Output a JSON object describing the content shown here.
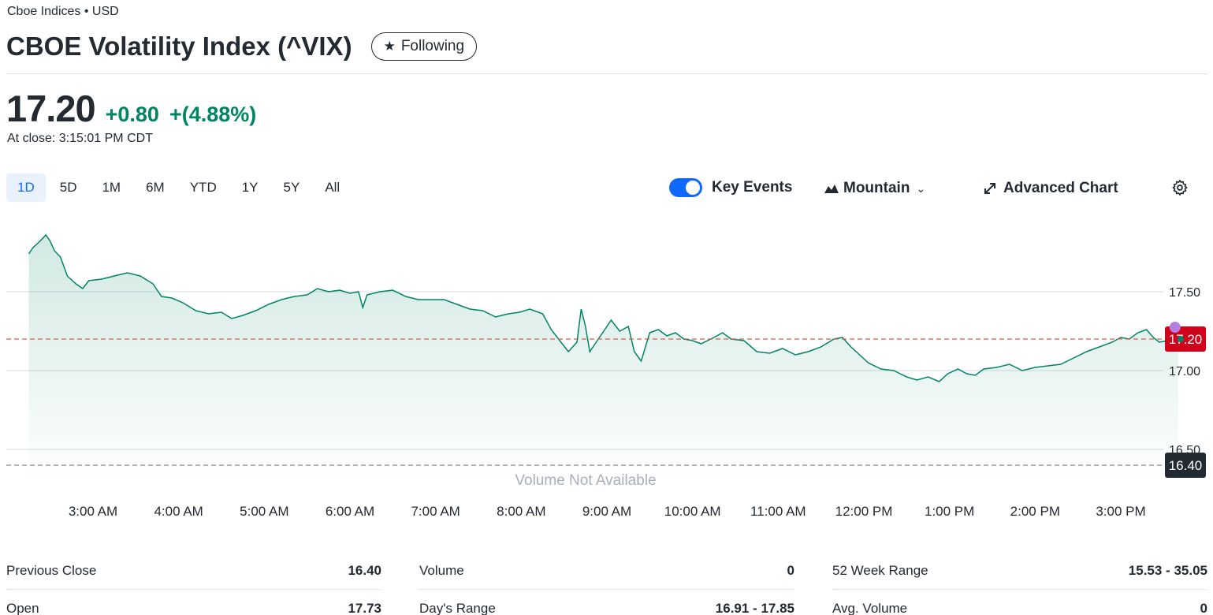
{
  "header": {
    "exchange": "Cboe Indices • USD",
    "title": "CBOE Volatility Index (^VIX)",
    "follow_label": "Following",
    "follow_icon": "star-icon"
  },
  "quote": {
    "price": "17.20",
    "change": "+0.80",
    "change_pct": "+(4.88%)",
    "close_time": "At close: 3:15:01 PM CDT",
    "positive_color": "#008463"
  },
  "range_tabs": [
    {
      "label": "1D",
      "active": true
    },
    {
      "label": "5D"
    },
    {
      "label": "1M"
    },
    {
      "label": "6M"
    },
    {
      "label": "YTD"
    },
    {
      "label": "1Y"
    },
    {
      "label": "5Y"
    },
    {
      "label": "All"
    }
  ],
  "controls": {
    "key_events_label": "Key Events",
    "key_events_on": true,
    "chart_type_label": "Mountain",
    "advanced_label": "Advanced Chart",
    "settings_icon": "gear-icon"
  },
  "chart_data": {
    "type": "area",
    "y_ticks": [
      "17.50",
      "17.00",
      "16.50"
    ],
    "y_tick_values": [
      17.5,
      17.0,
      16.5
    ],
    "x_ticks": [
      "3:00 AM",
      "4:00 AM",
      "5:00 AM",
      "6:00 AM",
      "7:00 AM",
      "8:00 AM",
      "9:00 AM",
      "10:00 AM",
      "11:00 AM",
      "12:00 PM",
      "1:00 PM",
      "2:00 PM",
      "3:00 PM"
    ],
    "x_tick_hours": [
      3,
      4,
      5,
      6,
      7,
      8,
      9,
      10,
      11,
      12,
      13,
      14,
      15
    ],
    "current_price": 17.2,
    "current_label": "17.20",
    "previous_close": 16.4,
    "previous_label": "16.40",
    "volume_note": "Volume Not Available",
    "line_color": "#008463",
    "current_badge_color": "#d0021b",
    "previous_badge_color": "#232a31",
    "event_dot_color": "#b57de0",
    "points": [
      [
        2.25,
        17.74
      ],
      [
        2.3,
        17.78
      ],
      [
        2.38,
        17.82
      ],
      [
        2.45,
        17.86
      ],
      [
        2.5,
        17.82
      ],
      [
        2.55,
        17.76
      ],
      [
        2.62,
        17.72
      ],
      [
        2.7,
        17.6
      ],
      [
        2.8,
        17.55
      ],
      [
        2.88,
        17.52
      ],
      [
        2.95,
        17.57
      ],
      [
        3.1,
        17.58
      ],
      [
        3.25,
        17.6
      ],
      [
        3.4,
        17.62
      ],
      [
        3.55,
        17.6
      ],
      [
        3.7,
        17.55
      ],
      [
        3.8,
        17.47
      ],
      [
        3.92,
        17.46
      ],
      [
        4.05,
        17.43
      ],
      [
        4.2,
        17.38
      ],
      [
        4.35,
        17.36
      ],
      [
        4.5,
        17.37
      ],
      [
        4.62,
        17.33
      ],
      [
        4.75,
        17.35
      ],
      [
        4.9,
        17.38
      ],
      [
        5.05,
        17.42
      ],
      [
        5.2,
        17.45
      ],
      [
        5.35,
        17.47
      ],
      [
        5.5,
        17.48
      ],
      [
        5.62,
        17.52
      ],
      [
        5.75,
        17.5
      ],
      [
        5.88,
        17.51
      ],
      [
        6.0,
        17.49
      ],
      [
        6.1,
        17.5
      ],
      [
        6.15,
        17.4
      ],
      [
        6.2,
        17.48
      ],
      [
        6.35,
        17.5
      ],
      [
        6.5,
        17.51
      ],
      [
        6.65,
        17.47
      ],
      [
        6.8,
        17.45
      ],
      [
        6.95,
        17.45
      ],
      [
        7.1,
        17.45
      ],
      [
        7.25,
        17.42
      ],
      [
        7.4,
        17.39
      ],
      [
        7.55,
        17.38
      ],
      [
        7.7,
        17.34
      ],
      [
        7.85,
        17.36
      ],
      [
        7.98,
        17.37
      ],
      [
        8.1,
        17.39
      ],
      [
        8.25,
        17.36
      ],
      [
        8.35,
        17.26
      ],
      [
        8.45,
        17.19
      ],
      [
        8.55,
        17.12
      ],
      [
        8.65,
        17.18
      ],
      [
        8.7,
        17.39
      ],
      [
        8.75,
        17.28
      ],
      [
        8.8,
        17.12
      ],
      [
        8.85,
        17.16
      ],
      [
        8.95,
        17.24
      ],
      [
        9.05,
        17.32
      ],
      [
        9.15,
        17.25
      ],
      [
        9.25,
        17.28
      ],
      [
        9.32,
        17.12
      ],
      [
        9.4,
        17.06
      ],
      [
        9.5,
        17.24
      ],
      [
        9.6,
        17.26
      ],
      [
        9.7,
        17.22
      ],
      [
        9.8,
        17.24
      ],
      [
        9.9,
        17.2
      ],
      [
        10.0,
        17.19
      ],
      [
        10.1,
        17.17
      ],
      [
        10.25,
        17.21
      ],
      [
        10.35,
        17.24
      ],
      [
        10.45,
        17.2
      ],
      [
        10.6,
        17.19
      ],
      [
        10.75,
        17.12
      ],
      [
        10.9,
        17.11
      ],
      [
        11.05,
        17.14
      ],
      [
        11.2,
        17.1
      ],
      [
        11.35,
        17.12
      ],
      [
        11.5,
        17.15
      ],
      [
        11.65,
        17.2
      ],
      [
        11.75,
        17.21
      ],
      [
        11.85,
        17.15
      ],
      [
        11.95,
        17.1
      ],
      [
        12.05,
        17.05
      ],
      [
        12.2,
        17.01
      ],
      [
        12.35,
        17.0
      ],
      [
        12.5,
        16.96
      ],
      [
        12.62,
        16.94
      ],
      [
        12.75,
        16.96
      ],
      [
        12.88,
        16.93
      ],
      [
        12.98,
        16.98
      ],
      [
        13.1,
        17.01
      ],
      [
        13.2,
        16.98
      ],
      [
        13.3,
        16.97
      ],
      [
        13.4,
        17.01
      ],
      [
        13.55,
        17.02
      ],
      [
        13.7,
        17.04
      ],
      [
        13.85,
        17.0
      ],
      [
        14.0,
        17.02
      ],
      [
        14.15,
        17.03
      ],
      [
        14.3,
        17.04
      ],
      [
        14.45,
        17.08
      ],
      [
        14.6,
        17.12
      ],
      [
        14.75,
        17.15
      ],
      [
        14.9,
        17.18
      ],
      [
        15.0,
        17.21
      ],
      [
        15.1,
        17.2
      ],
      [
        15.2,
        17.24
      ],
      [
        15.3,
        17.26
      ],
      [
        15.38,
        17.21
      ],
      [
        15.45,
        17.18
      ],
      [
        15.55,
        17.19
      ],
      [
        15.63,
        17.2
      ],
      [
        15.67,
        17.2
      ]
    ]
  },
  "stats": {
    "col1": [
      {
        "label": "Previous Close",
        "value": "16.40"
      },
      {
        "label": "Open",
        "value": "17.73"
      }
    ],
    "col2": [
      {
        "label": "Volume",
        "value": "0"
      },
      {
        "label": "Day's Range",
        "value": "16.91 - 17.85"
      }
    ],
    "col3": [
      {
        "label": "52 Week Range",
        "value": "15.53 - 35.05"
      },
      {
        "label": "Avg. Volume",
        "value": "0"
      }
    ]
  }
}
